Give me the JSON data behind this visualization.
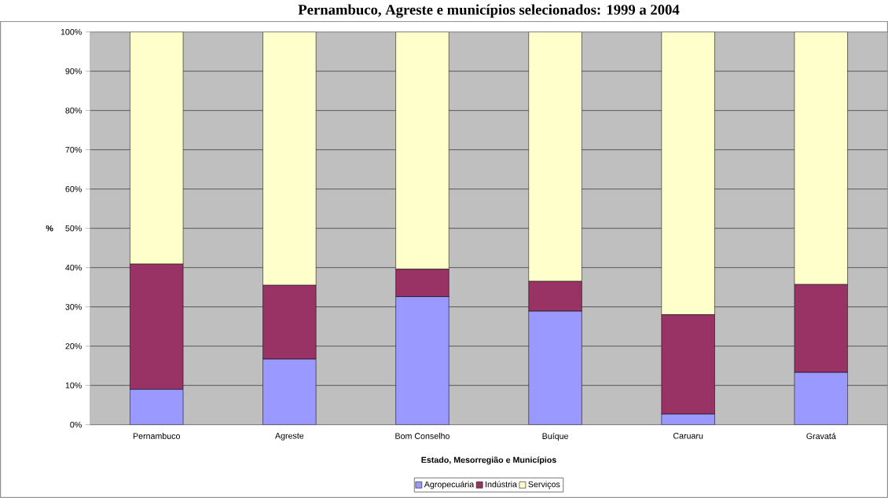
{
  "chart_data": {
    "type": "bar",
    "stacked": true,
    "title": "Pernambuco, Agreste e municípios selecionados: 1999 a 2004",
    "xlabel": "Estado, Mesorregião e Municípios",
    "ylabel": "%",
    "categories": [
      "Pernambuco",
      "Agreste",
      "Bom Conselho",
      "Buíque",
      "Caruaru",
      "Gravatá"
    ],
    "series": [
      {
        "name": "Agropecuária",
        "color": "#9999ff",
        "values": [
          9.0,
          16.7,
          32.6,
          28.9,
          2.7,
          13.3
        ]
      },
      {
        "name": "Indústria",
        "color": "#993366",
        "values": [
          31.9,
          18.8,
          7.0,
          7.6,
          25.3,
          22.4
        ]
      },
      {
        "name": "Serviços",
        "color": "#ffffcc",
        "values": [
          59.1,
          64.5,
          60.4,
          63.5,
          72.0,
          64.3
        ]
      }
    ],
    "ylim": [
      0,
      100
    ],
    "yticks": [
      {
        "value": 0,
        "label": "0%"
      },
      {
        "value": 10,
        "label": "10%"
      },
      {
        "value": 20,
        "label": "20%"
      },
      {
        "value": 30,
        "label": "30%"
      },
      {
        "value": 40,
        "label": "40%"
      },
      {
        "value": 50,
        "label": "50%"
      },
      {
        "value": 60,
        "label": "60%"
      },
      {
        "value": 70,
        "label": "70%"
      },
      {
        "value": 80,
        "label": "80%"
      },
      {
        "value": 90,
        "label": "90%"
      },
      {
        "value": 100,
        "label": "100%"
      }
    ],
    "grid": "y",
    "legend": "bottom"
  }
}
